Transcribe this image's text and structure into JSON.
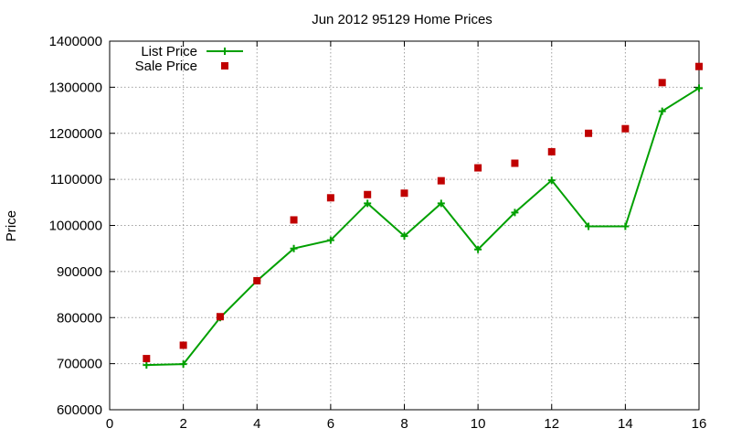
{
  "chart_data": {
    "type": "scatter",
    "title": "Jun 2012 95129 Home Prices",
    "xlabel": "",
    "ylabel": "Price",
    "xlim": [
      0,
      16
    ],
    "ylim": [
      600000,
      1400000
    ],
    "x_ticks": [
      0,
      2,
      4,
      6,
      8,
      10,
      12,
      14,
      16
    ],
    "y_ticks": [
      600000,
      700000,
      800000,
      900000,
      1000000,
      1100000,
      1200000,
      1300000,
      1400000
    ],
    "grid": true,
    "legend_position": "top-left",
    "series": [
      {
        "name": "List Price",
        "style": "linespoints",
        "marker": "plus",
        "color": "#00a000",
        "x": [
          1,
          2,
          3,
          4,
          5,
          6,
          7,
          8,
          9,
          10,
          11,
          12,
          13,
          14,
          15,
          16
        ],
        "values": [
          697000,
          699000,
          800000,
          880000,
          950000,
          968000,
          1048000,
          977000,
          1048000,
          948000,
          1028000,
          1098000,
          998000,
          998000,
          1248000,
          1298000
        ]
      },
      {
        "name": "Sale Price",
        "style": "points",
        "marker": "square",
        "color": "#c00000",
        "x": [
          1,
          2,
          3,
          4,
          5,
          6,
          7,
          8,
          9,
          10,
          11,
          12,
          13,
          14,
          15,
          16
        ],
        "values": [
          711000,
          740000,
          802000,
          880000,
          1012000,
          1060000,
          1067000,
          1070000,
          1097000,
          1125000,
          1135000,
          1160000,
          1200000,
          1210000,
          1310000,
          1345000
        ]
      }
    ]
  }
}
